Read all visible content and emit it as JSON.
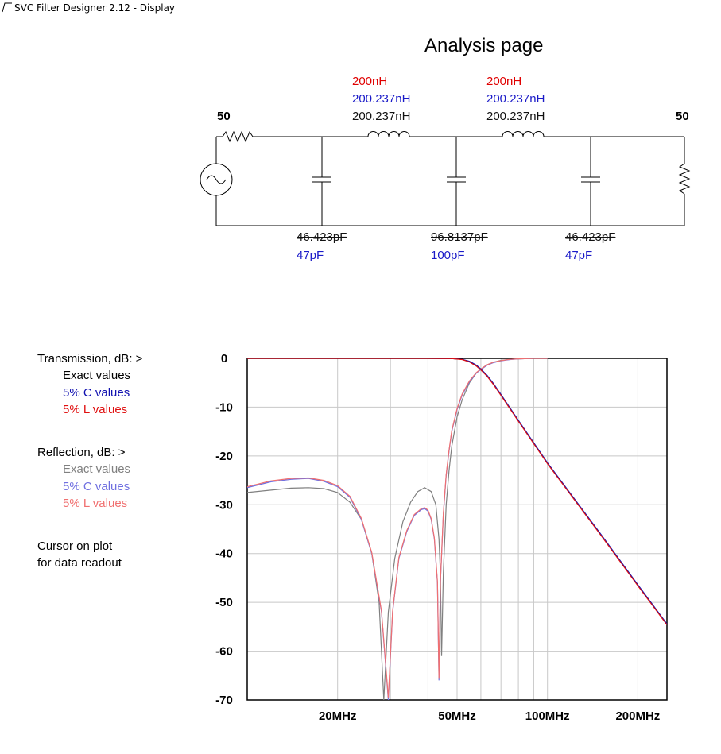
{
  "window": {
    "title": "SVC Filter Designer 2.12 - Display",
    "icon": "filter-response-icon"
  },
  "page_title": "Analysis page",
  "schematic": {
    "source_impedance": "50",
    "load_impedance": "50",
    "inductors": [
      {
        "nominal": "200nH",
        "c_values": "200.237nH",
        "exact": "200.237nH"
      },
      {
        "nominal": "200nH",
        "c_values": "200.237nH",
        "exact": "200.237nH"
      }
    ],
    "capacitors": [
      {
        "exact": "46.423pF",
        "nominal": "47pF"
      },
      {
        "exact": "96.8137pF",
        "nominal": "100pF"
      },
      {
        "exact": "46.423pF",
        "nominal": "47pF"
      }
    ]
  },
  "legend": {
    "transmission_header": "Transmission, dB:  >",
    "reflection_header": "Reflection, dB:  >",
    "exact": "Exact values",
    "c_values": "5% C values",
    "l_values": "5% L values",
    "cursor_line1": "Cursor on plot",
    "cursor_line2": "for data readout"
  },
  "colors": {
    "exact": "#000000",
    "c_values": "#1010b0",
    "l_values": "#e01010",
    "exact_reflection": "#808080",
    "c_values_reflection": "#7070e0",
    "l_values_reflection": "#f07070",
    "grid": "#c8c8c8"
  },
  "chart_data": {
    "type": "line",
    "x_scale": "log",
    "xlim_mhz": [
      10,
      250
    ],
    "ylim": [
      -70,
      0
    ],
    "grid": true,
    "y_ticks": [
      "0",
      "-10",
      "-20",
      "-30",
      "-40",
      "-50",
      "-60",
      "-70"
    ],
    "x_ticks": [
      {
        "label": "20MHz",
        "value": 20
      },
      {
        "label": "50MHz",
        "value": 50
      },
      {
        "label": "100MHz",
        "value": 100
      },
      {
        "label": "200MHz",
        "value": 200
      }
    ],
    "series": [
      {
        "name": "Transmission, Exact values",
        "color_key": "exact",
        "x": [
          10,
          40,
          48,
          52,
          55,
          58,
          60,
          63,
          66,
          70,
          80,
          100,
          150,
          200,
          250
        ],
        "y": [
          0,
          0,
          -0.05,
          -0.2,
          -0.7,
          -1.5,
          -2.3,
          -3.6,
          -5.2,
          -7.5,
          -12.8,
          -21.5,
          -36,
          -46.5,
          -54.5
        ]
      },
      {
        "name": "Transmission, 5% C values",
        "color_key": "c_values",
        "x": [
          10,
          40,
          48,
          52,
          55,
          58,
          60,
          63,
          66,
          70,
          80,
          100,
          150,
          200,
          250
        ],
        "y": [
          0,
          0,
          -0.05,
          -0.2,
          -0.6,
          -1.4,
          -2.2,
          -3.5,
          -5.1,
          -7.4,
          -12.7,
          -21.4,
          -35.9,
          -46.4,
          -54.4
        ]
      },
      {
        "name": "Transmission, 5% L values",
        "color_key": "l_values",
        "x": [
          10,
          40,
          48,
          52,
          55,
          58,
          60,
          63,
          66,
          70,
          80,
          100,
          150,
          200,
          250
        ],
        "y": [
          0,
          0,
          -0.05,
          -0.25,
          -0.75,
          -1.6,
          -2.4,
          -3.7,
          -5.3,
          -7.6,
          -12.9,
          -21.6,
          -36.1,
          -46.6,
          -54.6
        ]
      },
      {
        "name": "Reflection, Exact values",
        "color_key": "exact_reflection",
        "x": [
          10,
          12,
          14,
          16,
          18,
          20,
          22,
          24,
          26,
          27.5,
          28.5,
          29.5,
          31,
          33,
          35,
          37,
          39,
          41,
          42.5,
          43.5,
          44,
          44.4,
          45,
          46,
          47,
          48,
          50,
          52,
          55,
          58,
          60,
          63,
          66,
          70,
          75,
          80,
          90,
          100
        ],
        "y": [
          -27.5,
          -27,
          -26.6,
          -26.5,
          -26.7,
          -27.5,
          -29.5,
          -33,
          -40,
          -50,
          -70,
          -52,
          -41,
          -33.5,
          -29.5,
          -27.3,
          -26.5,
          -27.3,
          -30,
          -37,
          -44,
          -61,
          -44,
          -30,
          -23,
          -18,
          -12,
          -8.5,
          -5,
          -3,
          -2.2,
          -1.3,
          -0.8,
          -0.4,
          -0.2,
          -0.1,
          0,
          0
        ]
      },
      {
        "name": "Reflection, 5% C values",
        "color_key": "c_values_reflection",
        "x": [
          10,
          12,
          14,
          16,
          18,
          20,
          22,
          24,
          26,
          28,
          29.5,
          30.5,
          32,
          34,
          36,
          38,
          39,
          40,
          41,
          42,
          43,
          43.5,
          44,
          45,
          46,
          47,
          48,
          50,
          52,
          55,
          58,
          60,
          63,
          66,
          70,
          75,
          80,
          90,
          100
        ],
        "y": [
          -26.5,
          -25.3,
          -24.8,
          -24.6,
          -25.2,
          -26.3,
          -28.5,
          -33,
          -40,
          -52,
          -70,
          -52,
          -41,
          -35.5,
          -32.2,
          -31,
          -30.8,
          -31.3,
          -33,
          -37,
          -46,
          -66,
          -46,
          -32,
          -24,
          -19,
          -15,
          -10.5,
          -7.5,
          -4.8,
          -3,
          -2.3,
          -1.4,
          -0.9,
          -0.5,
          -0.25,
          -0.1,
          0,
          0
        ]
      },
      {
        "name": "Reflection, 5% L values",
        "color_key": "l_values_reflection",
        "x": [
          10,
          12,
          14,
          16,
          18,
          20,
          22,
          24,
          26,
          28,
          29.5,
          30.5,
          32,
          34,
          36,
          38,
          39,
          40,
          41,
          42,
          43,
          43.5,
          44,
          45,
          46,
          47,
          48,
          50,
          52,
          55,
          58,
          60,
          63,
          66,
          70,
          75,
          80,
          90,
          100
        ],
        "y": [
          -26.3,
          -25.1,
          -24.6,
          -24.5,
          -25,
          -26.1,
          -28.3,
          -32.8,
          -39.8,
          -51.8,
          -69.5,
          -51.8,
          -40.8,
          -35.3,
          -32,
          -30.8,
          -30.6,
          -31.1,
          -32.8,
          -36.8,
          -45.8,
          -65.5,
          -45.8,
          -31.8,
          -23.8,
          -18.8,
          -14.8,
          -10.3,
          -7.3,
          -4.6,
          -2.9,
          -2.2,
          -1.3,
          -0.8,
          -0.45,
          -0.2,
          -0.1,
          0,
          0
        ]
      }
    ]
  }
}
